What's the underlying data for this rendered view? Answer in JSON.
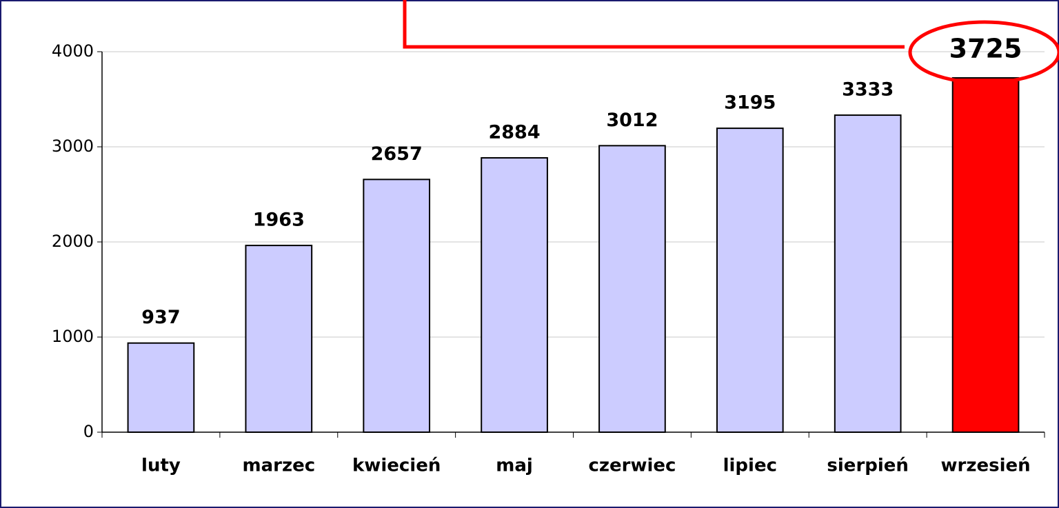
{
  "chart_data": {
    "type": "bar",
    "categories": [
      "luty",
      "marzec",
      "kwiecień",
      "maj",
      "czerwiec",
      "lipiec",
      "sierpień",
      "wrzesień"
    ],
    "values": [
      937,
      1963,
      2657,
      2884,
      3012,
      3195,
      3333,
      3725
    ],
    "colors": [
      "#ccccff",
      "#ccccff",
      "#ccccff",
      "#ccccff",
      "#ccccff",
      "#ccccff",
      "#ccccff",
      "#ff0000"
    ],
    "ylim": [
      0,
      4000
    ],
    "yticks": [
      0,
      1000,
      2000,
      3000,
      4000
    ],
    "grid": true
  }
}
